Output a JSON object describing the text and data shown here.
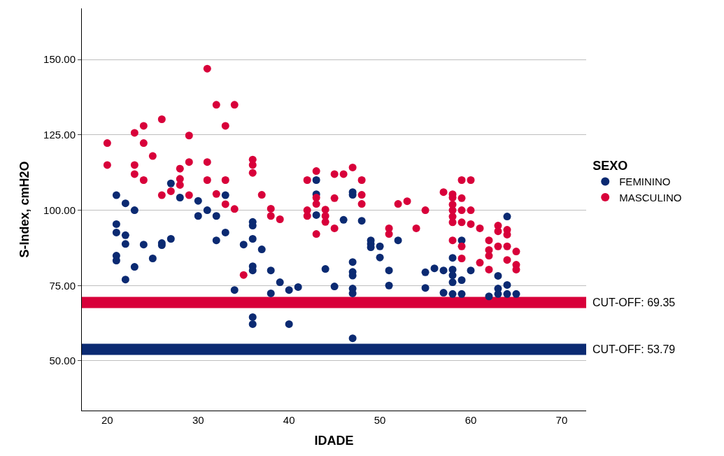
{
  "chart_data": {
    "type": "scatter",
    "xlabel": "IDADE",
    "ylabel": "S-Index, cmH2O",
    "legend_title": "SEXO",
    "legend": "right",
    "grid": "y",
    "marker": "circle",
    "xlim": [
      17.2,
      72.7
    ],
    "xticks": [
      20,
      30,
      40,
      50,
      60,
      70
    ],
    "ylim": [
      33.5,
      167
    ],
    "yticks": [
      {
        "value": 50,
        "label": "50.00"
      },
      {
        "value": 75,
        "label": "75.00"
      },
      {
        "value": 100,
        "label": "100.00"
      },
      {
        "value": 125,
        "label": "125.00"
      },
      {
        "value": 150,
        "label": "150.00"
      }
    ],
    "series": [
      {
        "name": "FEMININO",
        "color": "#0b2a72",
        "x": [
          27,
          21,
          22,
          28,
          30,
          33,
          23,
          30,
          31,
          32,
          21,
          21,
          22,
          22,
          24,
          26,
          26,
          27,
          32,
          33,
          35,
          36,
          36,
          36,
          21,
          21,
          22,
          23,
          25,
          36,
          36,
          34,
          36,
          36,
          43,
          43,
          43,
          47,
          47,
          46,
          48,
          37,
          38,
          39,
          40,
          41,
          38,
          44,
          45,
          47,
          47,
          47,
          47,
          47,
          49,
          49,
          49,
          50,
          50,
          52,
          51,
          51,
          55,
          55,
          40,
          47,
          64,
          59,
          58,
          56,
          57,
          58,
          58,
          58,
          59,
          60,
          63,
          64,
          57,
          58,
          59,
          62,
          63,
          63,
          64,
          65
        ],
        "values": [
          108.9,
          105,
          102.3,
          104.2,
          103.1,
          105,
          100,
          98.1,
          100,
          98.1,
          95.4,
          92.6,
          91.7,
          88.8,
          88.6,
          89.1,
          88.4,
          90.5,
          90,
          92.6,
          88.6,
          96.1,
          94.9,
          90.5,
          84.9,
          83.3,
          77,
          81.2,
          84,
          81.4,
          80,
          73.5,
          64.5,
          62.2,
          110,
          105.3,
          98.4,
          106,
          105.1,
          96.8,
          96.5,
          87,
          80,
          76.1,
          73.5,
          74.5,
          72.4,
          80.5,
          74.7,
          82.8,
          79.5,
          78.3,
          74,
          72.4,
          90,
          88.8,
          87.7,
          88,
          84.3,
          90,
          80,
          75,
          79.4,
          74.2,
          62.2,
          57.5,
          97.9,
          90,
          84.2,
          80.7,
          80,
          80.3,
          78.4,
          76.1,
          76.8,
          80,
          78.2,
          75.2,
          72.6,
          72.2,
          72.2,
          71.4,
          74,
          72.2,
          72.2,
          72.2
        ]
      },
      {
        "name": "MASCULINO",
        "color": "#d8003a",
        "x": [
          31,
          32,
          34,
          33,
          29,
          26,
          24,
          23,
          20,
          24,
          25,
          20,
          23,
          23,
          24,
          29,
          31,
          28,
          28,
          28,
          31,
          33,
          36,
          36,
          36,
          26,
          27,
          29,
          32,
          33,
          34,
          35,
          37,
          38,
          38,
          39,
          42,
          43,
          42,
          42,
          43,
          43,
          44,
          44,
          45,
          46,
          45,
          47,
          48,
          48,
          48,
          52,
          53,
          55,
          44,
          45,
          43,
          51,
          51,
          54,
          59,
          60,
          57,
          58,
          58,
          58,
          58,
          58,
          58,
          59,
          59,
          59,
          60,
          60,
          61,
          63,
          63,
          64,
          64,
          58,
          59,
          62,
          63,
          64,
          62,
          65,
          59,
          61,
          62,
          62,
          64,
          65,
          65
        ],
        "values": [
          147,
          135,
          135,
          128,
          124.8,
          130.2,
          128,
          125.7,
          122.3,
          122.3,
          118,
          115,
          115,
          112,
          110,
          116,
          116,
          113.8,
          110.4,
          108.4,
          110,
          110,
          116.8,
          115,
          112.4,
          105,
          106.3,
          105,
          105.4,
          102,
          100.4,
          78.5,
          105.1,
          100.5,
          98.1,
          97,
          110,
          113,
          100,
          98.1,
          104.2,
          102.1,
          100.2,
          98.1,
          112,
          112,
          104,
          114.2,
          110,
          105.1,
          102.1,
          102.1,
          103,
          100,
          96.1,
          94,
          92.1,
          94,
          92.1,
          94,
          110,
          110,
          106,
          105.3,
          104.2,
          101.9,
          100,
          97.9,
          96,
          104,
          100,
          96,
          100,
          95.4,
          94,
          94.9,
          93,
          93.5,
          91.9,
          90,
          88,
          90,
          88,
          88,
          86.8,
          86.3,
          84,
          82.6,
          80.3,
          84.9,
          83.5,
          81.9,
          80.3
        ]
      }
    ],
    "ref_lines": [
      {
        "axis": "y",
        "value": 69.35,
        "label": "CUT-OFF: 69.35",
        "color": "#d8003a"
      },
      {
        "axis": "y",
        "value": 53.79,
        "label": "CUT-OFF: 53.79",
        "color": "#0b2a72"
      }
    ]
  }
}
